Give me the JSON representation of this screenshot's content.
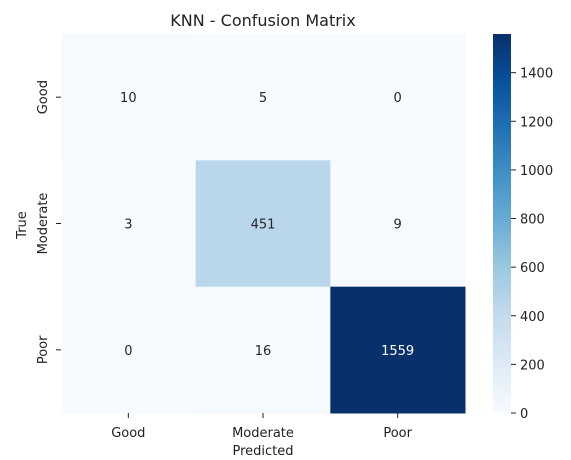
{
  "chart_data": {
    "type": "heatmap",
    "title": "KNN - Confusion Matrix",
    "xlabel": "Predicted",
    "ylabel": "True",
    "x_categories": [
      "Good",
      "Moderate",
      "Poor"
    ],
    "y_categories": [
      "Good",
      "Moderate",
      "Poor"
    ],
    "values": [
      [
        10,
        5,
        0
      ],
      [
        3,
        451,
        9
      ],
      [
        0,
        16,
        1559
      ]
    ],
    "colorbar": {
      "min": 0,
      "max": 1559,
      "ticks": [
        0,
        200,
        400,
        600,
        800,
        1000,
        1200,
        1400
      ]
    },
    "colormap": "Blues",
    "colors": {
      "low": "#f7fbff",
      "high": "#08306b",
      "text_dark": "#262626",
      "text_light": "#ffffff"
    }
  }
}
